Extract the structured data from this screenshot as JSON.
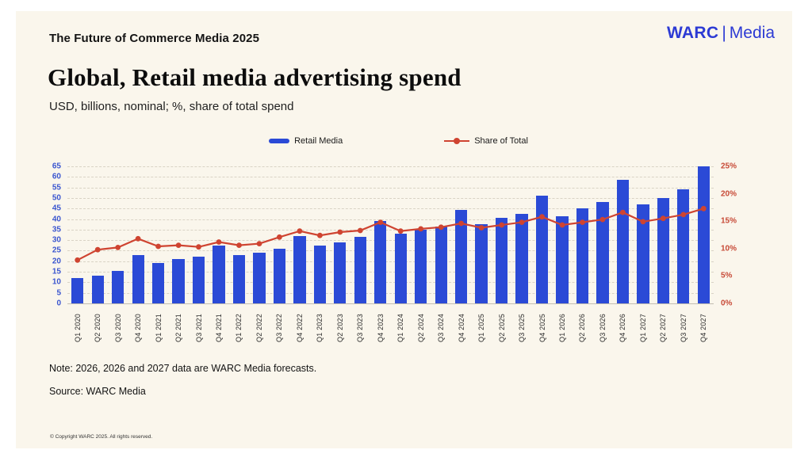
{
  "header": {
    "kicker": "The Future of Commerce Media 2025",
    "title": "Global, Retail media advertising spend",
    "subtitle": "USD, billions, nominal; %, share of total spend",
    "brand": {
      "name": "WARC",
      "divider": "|",
      "suffix": "Media",
      "color": "#2c3ad4"
    }
  },
  "legend": [
    {
      "label": "Retail Media",
      "type": "bar",
      "color": "#2b4ad6"
    },
    {
      "label": "Share of Total",
      "type": "line",
      "color": "#cf4431"
    }
  ],
  "chart_data": {
    "type": "bar",
    "combo": "bar+line",
    "title": "Global, Retail media advertising spend",
    "xlabel": "",
    "ylabel_left": "USD, billions, nominal",
    "ylabel_right": "%, share of total spend",
    "grid": "horizontal-dashed",
    "legend_position": "top-center",
    "categories": [
      "Q1 2020",
      "Q2 2020",
      "Q3 2020",
      "Q4 2020",
      "Q1 2021",
      "Q2 2021",
      "Q3 2021",
      "Q4 2021",
      "Q1 2022",
      "Q2 2022",
      "Q3 2022",
      "Q4 2022",
      "Q1 2023",
      "Q2 2023",
      "Q3 2023",
      "Q4 2023",
      "Q1 2024",
      "Q2 2024",
      "Q3 2024",
      "Q4 2024",
      "Q1 2025",
      "Q2 2025",
      "Q3 2025",
      "Q4 2025",
      "Q1 2026",
      "Q2 2026",
      "Q3 2026",
      "Q4 2026",
      "Q1 2027",
      "Q2 2027",
      "Q3 2027",
      "Q4 2027"
    ],
    "series": [
      {
        "name": "Retail Media",
        "type": "bar",
        "axis": "left",
        "unit": "USD billions",
        "color": "#2b4ad6",
        "values": [
          12,
          13,
          15.5,
          23,
          19,
          21,
          22,
          27.5,
          23,
          24,
          26,
          32,
          27.5,
          29,
          31.5,
          39,
          33,
          35,
          36.5,
          44.5,
          37.5,
          40.5,
          42.5,
          51,
          41.5,
          45,
          48,
          58.5,
          47,
          50,
          54,
          65
        ]
      },
      {
        "name": "Share of Total",
        "type": "line",
        "axis": "right",
        "unit": "%",
        "color": "#cf4431",
        "values": [
          7.9,
          9.8,
          10.2,
          11.8,
          10.4,
          10.6,
          10.3,
          11.2,
          10.6,
          10.9,
          12.1,
          13.2,
          12.4,
          13.0,
          13.3,
          14.8,
          13.2,
          13.6,
          13.9,
          14.6,
          13.8,
          14.3,
          14.8,
          15.8,
          14.3,
          14.8,
          15.3,
          16.6,
          14.9,
          15.5,
          16.2,
          17.3
        ]
      }
    ],
    "left_axis": {
      "min": 0,
      "max": 65,
      "step": 5,
      "color": "#3a55cf",
      "ticks": [
        "0",
        "5",
        "10",
        "15",
        "20",
        "25",
        "30",
        "35",
        "40",
        "45",
        "50",
        "55",
        "60",
        "65"
      ]
    },
    "right_axis": {
      "min": 0,
      "max": 25,
      "step": 5,
      "color": "#c74936",
      "ticks": [
        "0%",
        "5%",
        "10%",
        "15%",
        "20%",
        "25%"
      ]
    }
  },
  "notes": {
    "note": "Note: 2026, 2026 and 2027 data are WARC Media forecasts.",
    "source": "Source: WARC Media",
    "copyright": "© Copyright WARC 2025. All rights reserved."
  }
}
